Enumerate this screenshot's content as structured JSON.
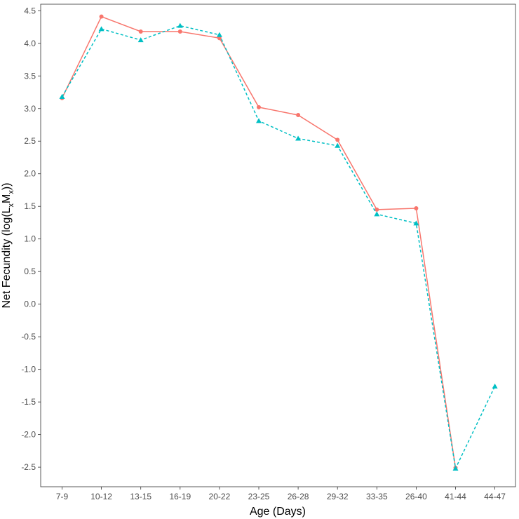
{
  "chart_data": {
    "type": "line",
    "title": "",
    "xlabel": "Age (Days)",
    "ylabel": {
      "prefix": "Net Fecundity (log(L",
      "sub1": "x",
      "mid": "M",
      "sub2": "x",
      "suffix": "))"
    },
    "categories": [
      "7-9",
      "10-12",
      "13-15",
      "16-19",
      "20-22",
      "23-25",
      "26-28",
      "29-32",
      "33-35",
      "26-40",
      "41-44",
      "44-47"
    ],
    "ylim": [
      -2.8,
      4.6
    ],
    "yticks": [
      4.5,
      4.0,
      3.5,
      3.0,
      2.5,
      2.0,
      1.5,
      1.0,
      0.5,
      0.0,
      -0.5,
      -1.0,
      -1.5,
      -2.0,
      -2.5
    ],
    "ytick_labels": [
      "4.5",
      "4.0",
      "3.5",
      "3.0",
      "2.5",
      "2.0",
      "1.5",
      "1.0",
      "0.5",
      "0.0",
      "-0.5",
      "-1.0",
      "-1.5",
      "-2.0",
      "-2.5"
    ],
    "grid": false,
    "legend": "none",
    "series": [
      {
        "color": "#F8766D",
        "line_style": "solid",
        "marker": "circle",
        "values": [
          3.16,
          4.41,
          4.18,
          4.18,
          4.08,
          3.02,
          2.9,
          2.52,
          1.45,
          1.47,
          -2.51,
          null
        ]
      },
      {
        "color": "#00BFC4",
        "line_style": "dashed",
        "marker": "triangle",
        "values": [
          3.18,
          4.22,
          4.05,
          4.27,
          4.13,
          2.81,
          2.54,
          2.43,
          1.38,
          1.24,
          -2.52,
          -1.26
        ]
      }
    ]
  }
}
